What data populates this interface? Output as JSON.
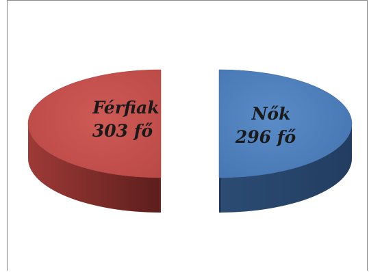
{
  "chart_data": {
    "type": "pie",
    "title": "",
    "unit": "fő",
    "categories": [
      "Férfiak",
      "Nők"
    ],
    "values": [
      303,
      296
    ],
    "labels": [
      {
        "name": "Férfiak",
        "value_text": "303 fő"
      },
      {
        "name": "Nők",
        "value_text": "296 fő"
      }
    ],
    "colors": {
      "Férfiak": "#c0504d",
      "Nők": "#4f81bd"
    },
    "style": "3d-exploded",
    "legend": "none"
  }
}
